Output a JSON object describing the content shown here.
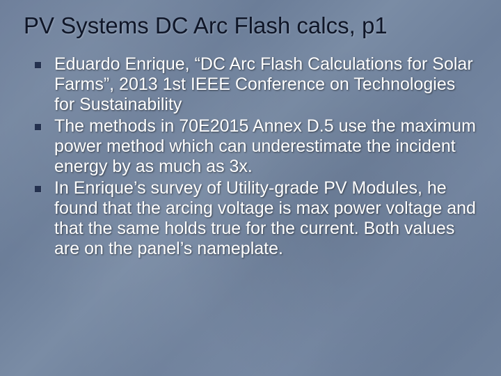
{
  "slide": {
    "title": "PV Systems DC Arc Flash calcs, p1",
    "title_color": "#0f1628",
    "title_fontsize": 33,
    "body_color": "#ffffff",
    "body_fontsize": 25,
    "bullet_color": "#24314f",
    "background_gradient": [
      "#6d7e9a",
      "#7486a0",
      "#6b7d98",
      "#7a8ca5",
      "#6e809b",
      "#7587a2",
      "#6c7e99",
      "#70829c"
    ],
    "bullets": [
      "Eduardo Enrique, “DC Arc Flash Calculations for Solar Farms”, 2013 1st IEEE Conference on Technologies for Sustainability",
      "The methods in 70E2015 Annex D.5 use the maximum power method which can underestimate the incident energy by as much as 3x.",
      "In Enrique’s survey of Utility-grade PV Modules, he found that the arcing voltage is max power voltage and that the same holds true for the current. Both values are on the panel’s nameplate."
    ]
  }
}
